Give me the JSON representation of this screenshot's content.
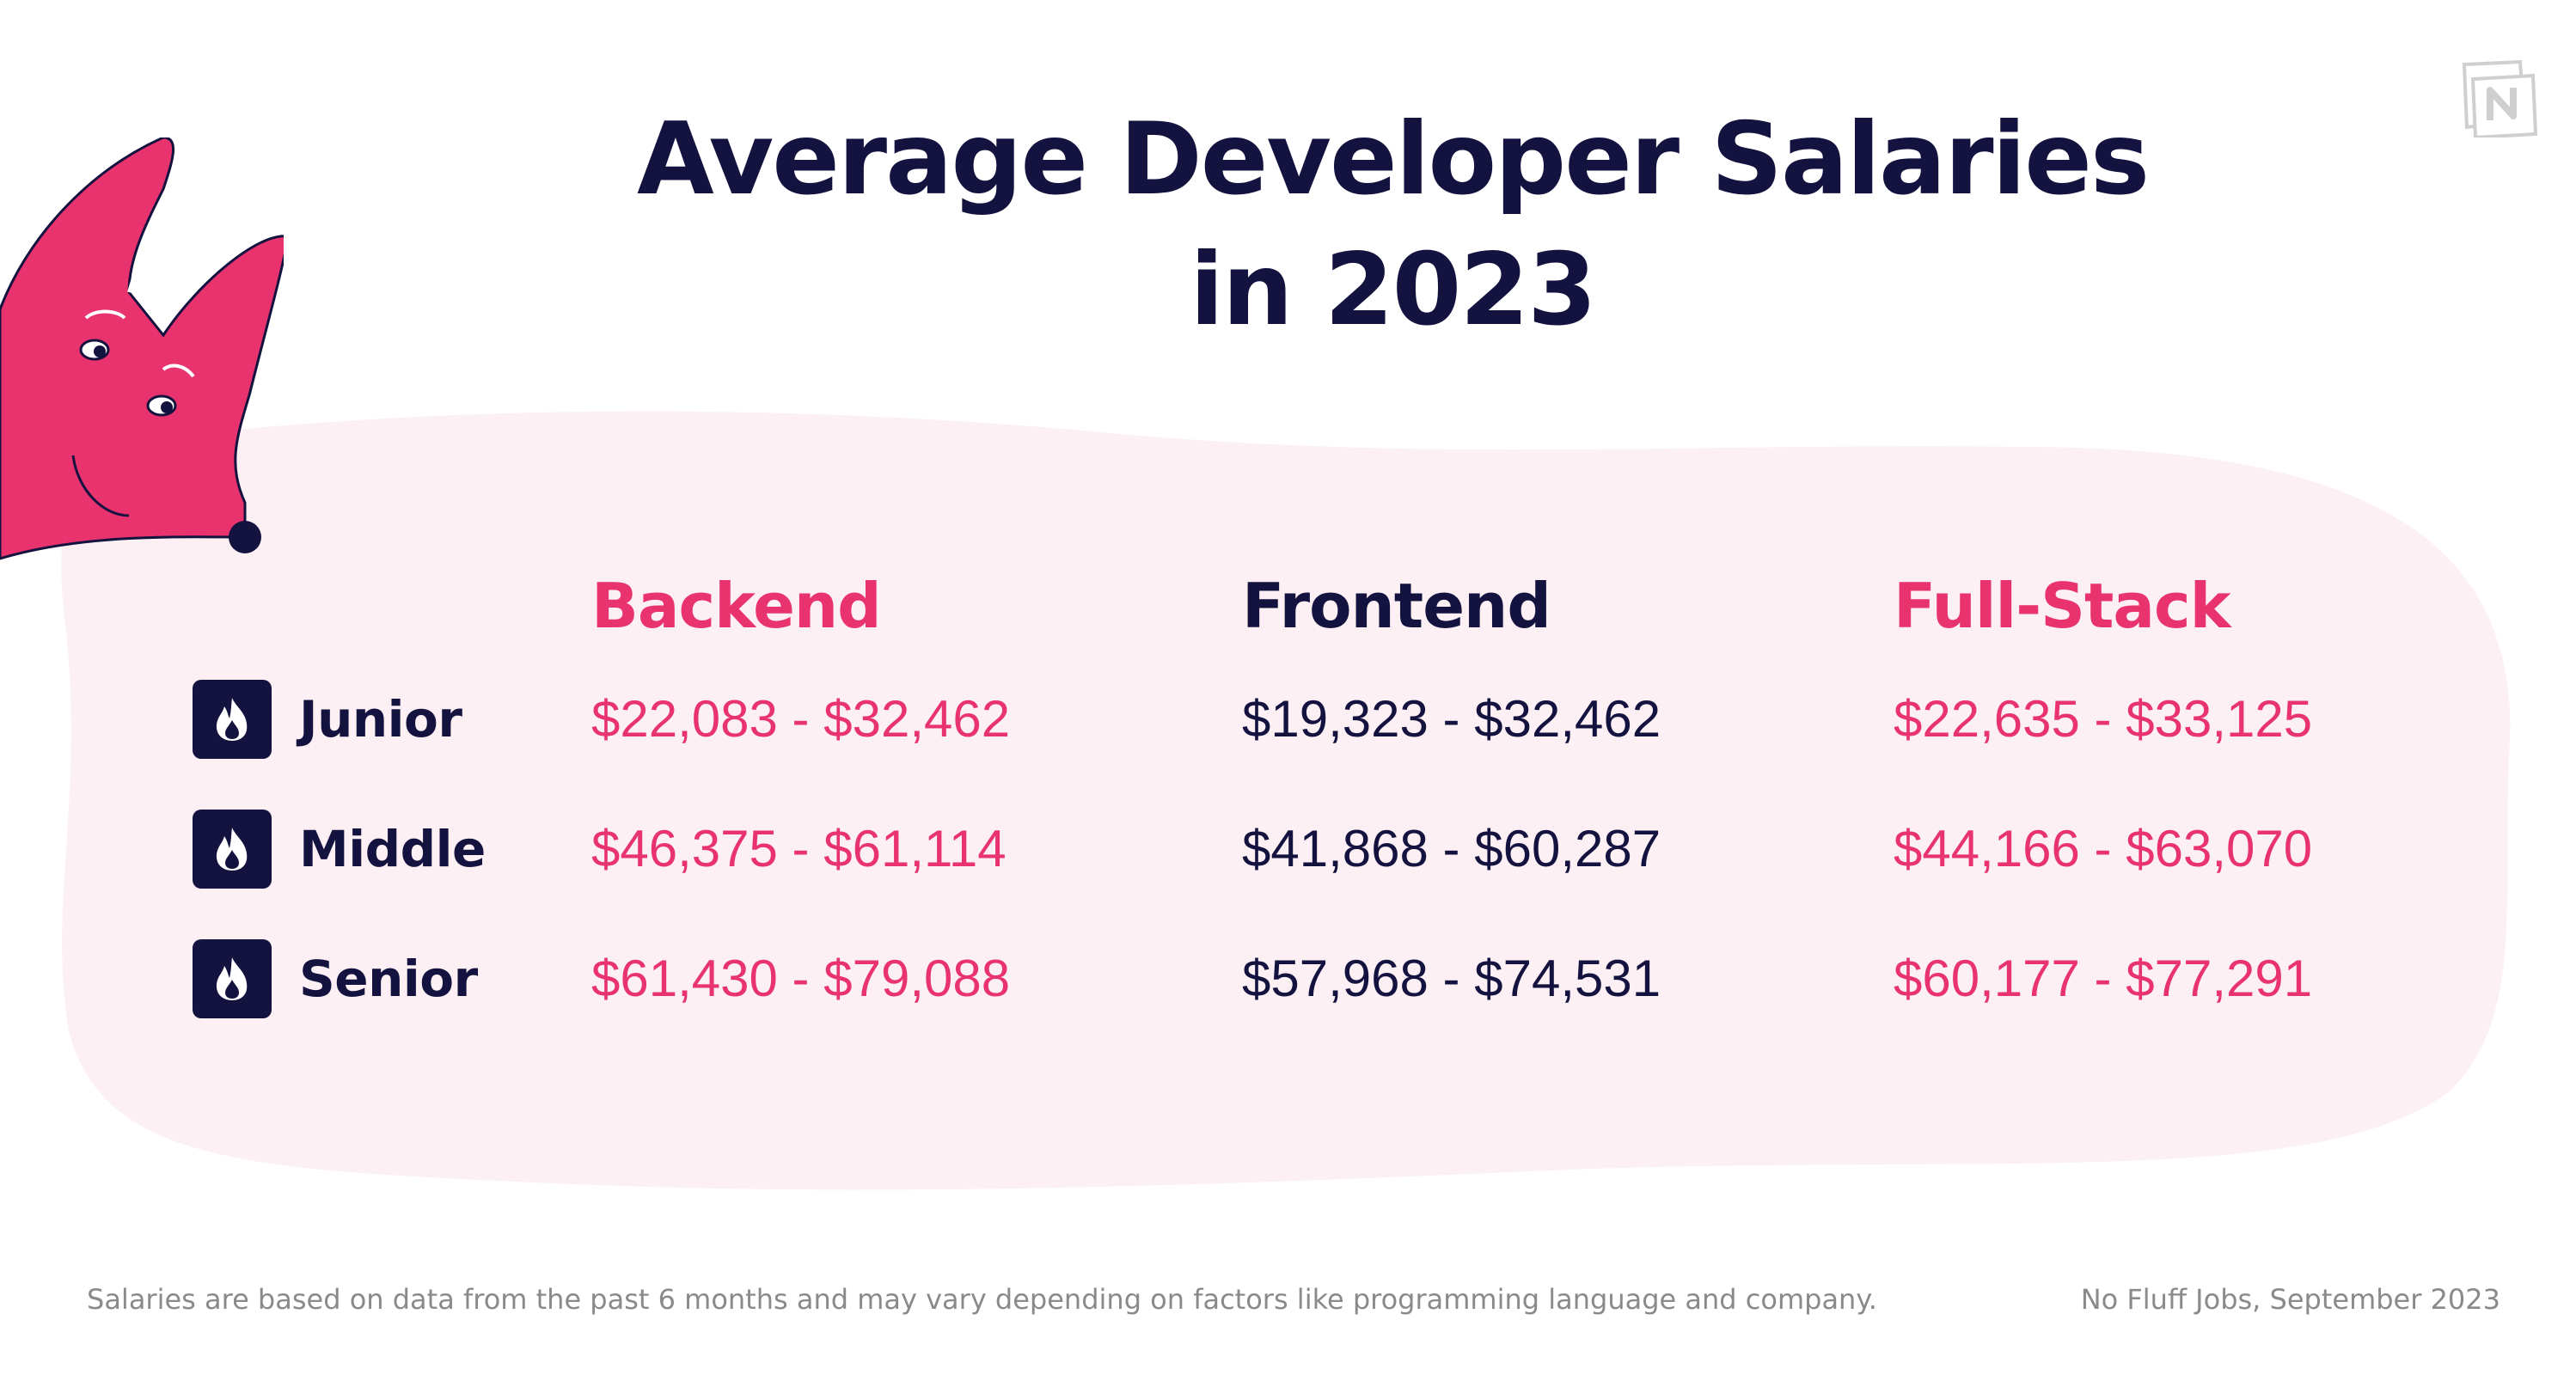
{
  "title_line1": "Average Developer Salaries",
  "title_line2": "in 2023",
  "columns": [
    "Backend",
    "Frontend",
    "Full-Stack"
  ],
  "rows": [
    {
      "level": "Junior",
      "values": [
        "$22,083 - $32,462",
        "$19,323 - $32,462",
        "$22,635 - $33,125"
      ]
    },
    {
      "level": "Middle",
      "values": [
        "$46,375 - $61,114",
        "$41,868 - $60,287",
        "$44,166 - $63,070"
      ]
    },
    {
      "level": "Senior",
      "values": [
        "$61,430 - $79,088",
        "$57,968 - $74,531",
        "$60,177 - $77,291"
      ]
    }
  ],
  "footnote": "Salaries are based on data from the past 6 months and may vary depending on factors like programming language and company.",
  "source": "No Fluff Jobs, September 2023",
  "icons": {
    "row_badge": "flame-icon",
    "mascot": "fox-mascot",
    "brand": "nofluffjobs-logo-icon"
  },
  "colors": {
    "navy": "#14123f",
    "pink": "#e8336e",
    "blob": "#fcf0f4",
    "footnote": "#8a8a8a"
  }
}
